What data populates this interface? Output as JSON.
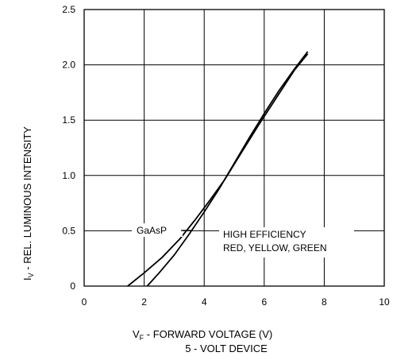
{
  "chart_data": {
    "type": "line",
    "title": "",
    "xlabel": "VF - FORWARD VOLTAGE (V)",
    "xlabel_main": "V",
    "xlabel_sub": "F",
    "xlabel_rest": " - FORWARD VOLTAGE (V)",
    "xlabel_line2": "5 - VOLT DEVICE",
    "ylabel": "IV - REL. LUMINOUS INTENSITY",
    "ylabel_main": "I",
    "ylabel_sub": "V",
    "ylabel_rest": " - REL. LUMINOUS INTENSITY",
    "xlim": [
      0,
      10
    ],
    "ylim": [
      0,
      2.5
    ],
    "xticks": [
      0,
      2,
      4,
      6,
      8,
      10
    ],
    "xtick_labels": [
      "0",
      "2",
      "4",
      "6",
      "8",
      "10"
    ],
    "yticks": [
      0,
      0.5,
      1.0,
      1.5,
      2.0,
      2.5
    ],
    "ytick_labels": [
      "0",
      "0.5",
      "1.0",
      "1.5",
      "2.0",
      "2.5"
    ],
    "grid": true,
    "series": [
      {
        "label": "GaAsP",
        "x": [
          1.45,
          2.0,
          2.6,
          3.2,
          3.7,
          4.2,
          4.7,
          5.2,
          5.8,
          6.4,
          7.0,
          7.45
        ],
        "y": [
          0.0,
          0.12,
          0.26,
          0.43,
          0.6,
          0.78,
          0.97,
          1.19,
          1.45,
          1.7,
          1.95,
          2.1
        ]
      },
      {
        "label": "HIGH EFFICIENCY RED, YELLOW, GREEN",
        "label_lines": [
          "HIGH EFFICIENCY",
          "RED, YELLOW, GREEN"
        ],
        "x": [
          2.1,
          2.5,
          3.0,
          3.5,
          4.0,
          4.5,
          5.0,
          5.5,
          6.0,
          6.5,
          7.0,
          7.45
        ],
        "y": [
          0.0,
          0.12,
          0.28,
          0.47,
          0.67,
          0.88,
          1.11,
          1.34,
          1.56,
          1.77,
          1.96,
          2.12
        ]
      }
    ]
  }
}
